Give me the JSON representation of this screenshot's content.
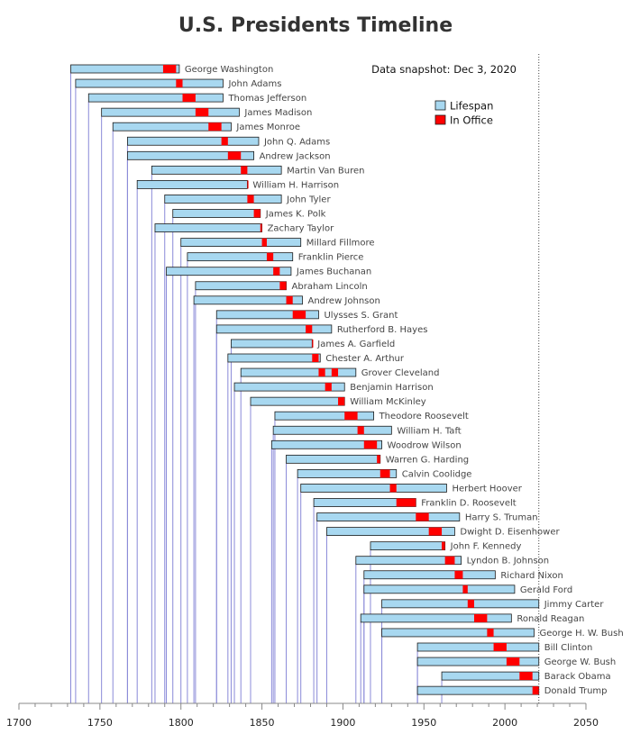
{
  "chart_data": {
    "type": "timeline",
    "title": "U.S. Presidents Timeline",
    "annotation": "Data snapshot: Dec 3, 2020",
    "snapshot_year": 2020.92,
    "xlim": [
      1700,
      2050
    ],
    "x_ticks": [
      1700,
      1750,
      1800,
      1850,
      1900,
      1950,
      2000,
      2050
    ],
    "grid": false,
    "legend_position": "top-right",
    "legend": [
      {
        "label": "Lifespan",
        "color": "#a8d8f0"
      },
      {
        "label": "In Office",
        "color": "#ff0000"
      }
    ],
    "presidents": [
      {
        "name": "George Washington",
        "birth": 1732,
        "death": 1799,
        "terms": [
          [
            1789,
            1797
          ]
        ]
      },
      {
        "name": "John Adams",
        "birth": 1735,
        "death": 1826,
        "terms": [
          [
            1797,
            1801
          ]
        ]
      },
      {
        "name": "Thomas Jefferson",
        "birth": 1743,
        "death": 1826,
        "terms": [
          [
            1801,
            1809
          ]
        ]
      },
      {
        "name": "James Madison",
        "birth": 1751,
        "death": 1836,
        "terms": [
          [
            1809,
            1817
          ]
        ]
      },
      {
        "name": "James Monroe",
        "birth": 1758,
        "death": 1831,
        "terms": [
          [
            1817,
            1825
          ]
        ]
      },
      {
        "name": "John Q. Adams",
        "birth": 1767,
        "death": 1848,
        "terms": [
          [
            1825,
            1829
          ]
        ]
      },
      {
        "name": "Andrew Jackson",
        "birth": 1767,
        "death": 1845,
        "terms": [
          [
            1829,
            1837
          ]
        ]
      },
      {
        "name": "Martin Van Buren",
        "birth": 1782,
        "death": 1862,
        "terms": [
          [
            1837,
            1841
          ]
        ]
      },
      {
        "name": "William H. Harrison",
        "birth": 1773,
        "death": 1841,
        "terms": [
          [
            1841,
            1841.1
          ]
        ]
      },
      {
        "name": "John Tyler",
        "birth": 1790,
        "death": 1862,
        "terms": [
          [
            1841,
            1845
          ]
        ]
      },
      {
        "name": "James K. Polk",
        "birth": 1795,
        "death": 1849,
        "terms": [
          [
            1845,
            1849
          ]
        ]
      },
      {
        "name": "Zachary Taylor",
        "birth": 1784,
        "death": 1850,
        "terms": [
          [
            1849,
            1850
          ]
        ]
      },
      {
        "name": "Millard Fillmore",
        "birth": 1800,
        "death": 1874,
        "terms": [
          [
            1850,
            1853
          ]
        ]
      },
      {
        "name": "Franklin Pierce",
        "birth": 1804,
        "death": 1869,
        "terms": [
          [
            1853,
            1857
          ]
        ]
      },
      {
        "name": "James Buchanan",
        "birth": 1791,
        "death": 1868,
        "terms": [
          [
            1857,
            1861
          ]
        ]
      },
      {
        "name": "Abraham Lincoln",
        "birth": 1809,
        "death": 1865,
        "terms": [
          [
            1861,
            1865
          ]
        ]
      },
      {
        "name": "Andrew Johnson",
        "birth": 1808,
        "death": 1875,
        "terms": [
          [
            1865,
            1869
          ]
        ]
      },
      {
        "name": "Ulysses S. Grant",
        "birth": 1822,
        "death": 1885,
        "terms": [
          [
            1869,
            1877
          ]
        ]
      },
      {
        "name": "Rutherford B. Hayes",
        "birth": 1822,
        "death": 1893,
        "terms": [
          [
            1877,
            1881
          ]
        ]
      },
      {
        "name": "James A. Garfield",
        "birth": 1831,
        "death": 1881,
        "terms": [
          [
            1881,
            1881.5
          ]
        ]
      },
      {
        "name": "Chester A. Arthur",
        "birth": 1829,
        "death": 1886,
        "terms": [
          [
            1881,
            1885
          ]
        ]
      },
      {
        "name": "Grover Cleveland",
        "birth": 1837,
        "death": 1908,
        "terms": [
          [
            1885,
            1889
          ],
          [
            1893,
            1897
          ]
        ]
      },
      {
        "name": "Benjamin Harrison",
        "birth": 1833,
        "death": 1901,
        "terms": [
          [
            1889,
            1893
          ]
        ]
      },
      {
        "name": "William McKinley",
        "birth": 1843,
        "death": 1901,
        "terms": [
          [
            1897,
            1901
          ]
        ]
      },
      {
        "name": "Theodore Roosevelt",
        "birth": 1858,
        "death": 1919,
        "terms": [
          [
            1901,
            1909
          ]
        ]
      },
      {
        "name": "William H. Taft",
        "birth": 1857,
        "death": 1930,
        "terms": [
          [
            1909,
            1913
          ]
        ]
      },
      {
        "name": "Woodrow Wilson",
        "birth": 1856,
        "death": 1924,
        "terms": [
          [
            1913,
            1921
          ]
        ]
      },
      {
        "name": "Warren G. Harding",
        "birth": 1865,
        "death": 1923,
        "terms": [
          [
            1921,
            1923
          ]
        ]
      },
      {
        "name": "Calvin Coolidge",
        "birth": 1872,
        "death": 1933,
        "terms": [
          [
            1923,
            1929
          ]
        ]
      },
      {
        "name": "Herbert Hoover",
        "birth": 1874,
        "death": 1964,
        "terms": [
          [
            1929,
            1933
          ]
        ]
      },
      {
        "name": "Franklin D. Roosevelt",
        "birth": 1882,
        "death": 1945,
        "terms": [
          [
            1933,
            1945
          ]
        ]
      },
      {
        "name": "Harry S. Truman",
        "birth": 1884,
        "death": 1972,
        "terms": [
          [
            1945,
            1953
          ]
        ]
      },
      {
        "name": "Dwight D. Eisenhower",
        "birth": 1890,
        "death": 1969,
        "terms": [
          [
            1953,
            1961
          ]
        ]
      },
      {
        "name": "John F. Kennedy",
        "birth": 1917,
        "death": 1963,
        "terms": [
          [
            1961,
            1963
          ]
        ]
      },
      {
        "name": "Lyndon B. Johnson",
        "birth": 1908,
        "death": 1973,
        "terms": [
          [
            1963,
            1969
          ]
        ]
      },
      {
        "name": "Richard Nixon",
        "birth": 1913,
        "death": 1994,
        "terms": [
          [
            1969,
            1974
          ]
        ]
      },
      {
        "name": "Gerald Ford",
        "birth": 1913,
        "death": 2006,
        "terms": [
          [
            1974,
            1977
          ]
        ]
      },
      {
        "name": "Jimmy Carter",
        "birth": 1924,
        "death": null,
        "terms": [
          [
            1977,
            1981
          ]
        ]
      },
      {
        "name": "Ronald Reagan",
        "birth": 1911,
        "death": 2004,
        "terms": [
          [
            1981,
            1989
          ]
        ]
      },
      {
        "name": "George H. W. Bush",
        "birth": 1924,
        "death": 2018,
        "terms": [
          [
            1989,
            1993
          ]
        ]
      },
      {
        "name": "Bill Clinton",
        "birth": 1946,
        "death": null,
        "terms": [
          [
            1993,
            2001
          ]
        ]
      },
      {
        "name": "George W. Bush",
        "birth": 1946,
        "death": null,
        "terms": [
          [
            2001,
            2009
          ]
        ]
      },
      {
        "name": "Barack Obama",
        "birth": 1961,
        "death": null,
        "terms": [
          [
            2009,
            2017
          ]
        ]
      },
      {
        "name": "Donald Trump",
        "birth": 1946,
        "death": null,
        "terms": [
          [
            2017,
            2020.92
          ]
        ]
      }
    ]
  }
}
